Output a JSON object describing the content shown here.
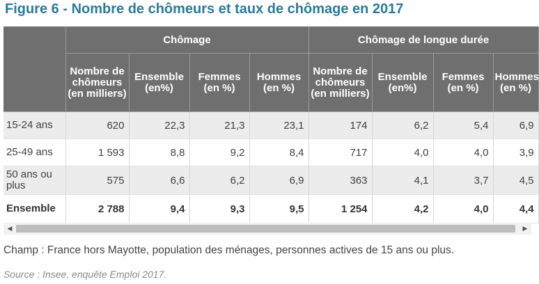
{
  "title": "Figure 6 - Nombre de chômeurs et taux de chômage en 2017",
  "table": {
    "group_headers": [
      "Chômage",
      "Chômage de longue durée"
    ],
    "sub_headers": [
      "Nombre de chômeurs (en milliers)",
      "Ensemble (en%)",
      "Femmes (en %)",
      "Hommes (en %)",
      "Nombre de chômeurs (en milliers)",
      "Ensemble (en%)",
      "Femmes (en %)",
      "Hommes (en %)"
    ],
    "rows": [
      {
        "label": "15-24 ans",
        "cells": [
          "620",
          "22,3",
          "21,3",
          "23,1",
          "174",
          "6,2",
          "5,4",
          "6,9"
        ]
      },
      {
        "label": "25-49 ans",
        "cells": [
          "1 593",
          "8,8",
          "9,2",
          "8,4",
          "717",
          "4,0",
          "4,0",
          "3,9"
        ]
      },
      {
        "label": "50 ans ou plus",
        "cells": [
          "575",
          "6,6",
          "6,2",
          "6,9",
          "363",
          "4,1",
          "3,7",
          "4,5"
        ]
      },
      {
        "label": "Ensemble",
        "cells": [
          "2 788",
          "9,4",
          "9,3",
          "9,5",
          "1 254",
          "4,2",
          "4,0",
          "4,4"
        ]
      }
    ]
  },
  "scrollbar": {
    "left_arrow": "◀",
    "right_arrow": "▶"
  },
  "note": "Champ : France hors Mayotte, population des ménages, personnes actives de 15 ans ou plus.",
  "source": "Source : Insee, enquête Emploi 2017.",
  "colors": {
    "title": "#2a7a9b",
    "header_bg": "#6f6f6f",
    "row_alt_bg": "#ececec"
  }
}
